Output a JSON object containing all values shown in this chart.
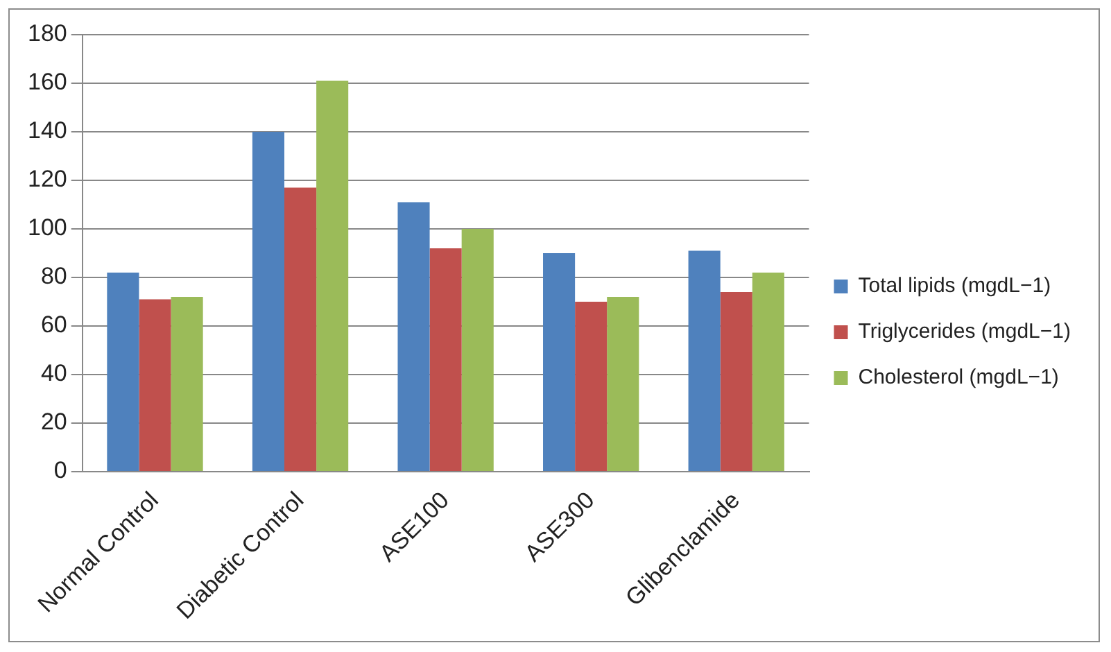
{
  "chart_data": {
    "type": "bar",
    "categories": [
      "Normal Control",
      "Diabetic Control",
      "ASE100",
      "ASE300",
      "Glibenclamide"
    ],
    "series": [
      {
        "name": "Total lipids (mgdL−1)",
        "color": "#4f81bd",
        "values": [
          82,
          140,
          111,
          90,
          91
        ]
      },
      {
        "name": "Triglycerides (mgdL−1)",
        "color": "#c0504d",
        "values": [
          71,
          117,
          92,
          70,
          74
        ]
      },
      {
        "name": "Cholesterol (mgdL−1)",
        "color": "#9bbb59",
        "values": [
          72,
          161,
          100,
          72,
          82
        ]
      }
    ],
    "ylim": [
      0,
      180
    ],
    "yticks": [
      0,
      20,
      40,
      60,
      80,
      100,
      120,
      140,
      160,
      180
    ],
    "grid": "y",
    "legend": "right"
  }
}
